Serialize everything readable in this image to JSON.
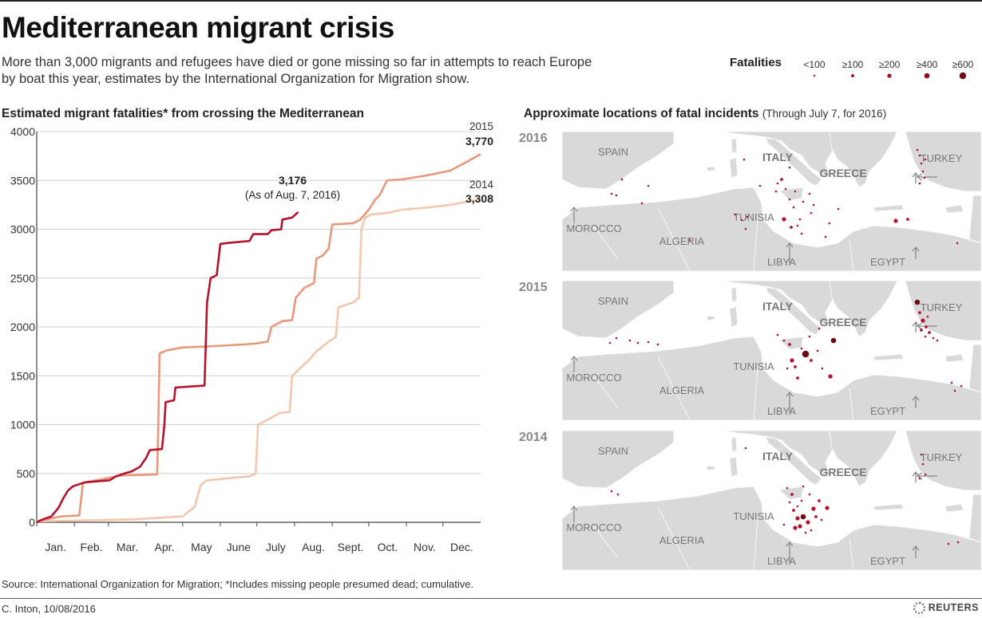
{
  "title": "Mediterranean migrant crisis",
  "subtitle": "More than 3,000 migrants and refugees have died or gone missing so far in attempts to reach Europe by boat this year, estimates by the International Organization for Migration show.",
  "legend": {
    "title": "Fatalities",
    "items": [
      {
        "label": "<100"
      },
      {
        "label": "≥100"
      },
      {
        "label": "≥200"
      },
      {
        "label": "≥400"
      },
      {
        "label": "≥600"
      }
    ]
  },
  "chart_heading": "Estimated migrant fatalities* from crossing the Mediterranean",
  "map_heading": {
    "main": "Approximate locations of fatal incidents",
    "sub": "(Through July 7, for 2016)"
  },
  "chart_data": {
    "type": "line",
    "title": "Estimated migrant fatalities* from crossing the Mediterranean",
    "xlabel": "",
    "ylabel": "",
    "x_ticks": [
      "Jan.",
      "Feb.",
      "Mar.",
      "Apr.",
      "May",
      "June",
      "July",
      "Aug.",
      "Sept.",
      "Oct.",
      "Nov.",
      "Dec."
    ],
    "y_ticks": [
      0,
      500,
      1000,
      1500,
      2000,
      2500,
      3000,
      3500,
      4000
    ],
    "ylim": [
      0,
      4000
    ],
    "xlim_days": [
      0,
      365
    ],
    "grid": true,
    "series": [
      {
        "name": "2016",
        "color": "#b5122b",
        "points": [
          [
            0,
            0
          ],
          [
            5,
            30
          ],
          [
            12,
            60
          ],
          [
            18,
            150
          ],
          [
            22,
            250
          ],
          [
            26,
            330
          ],
          [
            30,
            370
          ],
          [
            35,
            390
          ],
          [
            40,
            410
          ],
          [
            50,
            420
          ],
          [
            60,
            430
          ],
          [
            65,
            470
          ],
          [
            72,
            500
          ],
          [
            78,
            520
          ],
          [
            85,
            570
          ],
          [
            90,
            660
          ],
          [
            93,
            740
          ],
          [
            103,
            750
          ],
          [
            105,
            1000
          ],
          [
            106,
            1230
          ],
          [
            113,
            1250
          ],
          [
            114,
            1380
          ],
          [
            138,
            1400
          ],
          [
            140,
            2250
          ],
          [
            143,
            2500
          ],
          [
            148,
            2530
          ],
          [
            151,
            2850
          ],
          [
            157,
            2860
          ],
          [
            175,
            2880
          ],
          [
            178,
            2950
          ],
          [
            190,
            2950
          ],
          [
            193,
            2990
          ],
          [
            201,
            3000
          ],
          [
            202,
            3100
          ],
          [
            210,
            3120
          ],
          [
            215,
            3176
          ]
        ]
      },
      {
        "name": "2015",
        "color": "#e8987a",
        "points": [
          [
            0,
            10
          ],
          [
            20,
            60
          ],
          [
            35,
            70
          ],
          [
            38,
            400
          ],
          [
            40,
            410
          ],
          [
            70,
            480
          ],
          [
            99,
            490
          ],
          [
            100,
            1000
          ],
          [
            101,
            1730
          ],
          [
            107,
            1760
          ],
          [
            120,
            1790
          ],
          [
            140,
            1800
          ],
          [
            170,
            1820
          ],
          [
            180,
            1830
          ],
          [
            190,
            1850
          ],
          [
            193,
            2000
          ],
          [
            202,
            2060
          ],
          [
            210,
            2070
          ],
          [
            213,
            2300
          ],
          [
            220,
            2400
          ],
          [
            228,
            2450
          ],
          [
            230,
            2700
          ],
          [
            235,
            2730
          ],
          [
            240,
            2800
          ],
          [
            243,
            3050
          ],
          [
            260,
            3060
          ],
          [
            266,
            3100
          ],
          [
            273,
            3200
          ],
          [
            278,
            3300
          ],
          [
            282,
            3350
          ],
          [
            288,
            3500
          ],
          [
            300,
            3510
          ],
          [
            310,
            3530
          ],
          [
            320,
            3550
          ],
          [
            340,
            3600
          ],
          [
            355,
            3700
          ],
          [
            365,
            3770
          ]
        ]
      },
      {
        "name": "2014",
        "color": "#f4c6ad",
        "points": [
          [
            0,
            10
          ],
          [
            80,
            30
          ],
          [
            120,
            60
          ],
          [
            130,
            160
          ],
          [
            133,
            300
          ],
          [
            135,
            380
          ],
          [
            140,
            430
          ],
          [
            150,
            440
          ],
          [
            165,
            460
          ],
          [
            175,
            470
          ],
          [
            180,
            500
          ],
          [
            182,
            1000
          ],
          [
            190,
            1050
          ],
          [
            200,
            1120
          ],
          [
            208,
            1130
          ],
          [
            210,
            1500
          ],
          [
            216,
            1570
          ],
          [
            223,
            1650
          ],
          [
            230,
            1750
          ],
          [
            235,
            1800
          ],
          [
            240,
            1850
          ],
          [
            246,
            1900
          ],
          [
            248,
            2200
          ],
          [
            260,
            2250
          ],
          [
            265,
            2300
          ],
          [
            267,
            3000
          ],
          [
            270,
            3120
          ],
          [
            275,
            3150
          ],
          [
            290,
            3170
          ],
          [
            300,
            3200
          ],
          [
            320,
            3220
          ],
          [
            340,
            3250
          ],
          [
            365,
            3308
          ]
        ]
      }
    ],
    "annotations": [
      {
        "series": "2016",
        "value": "3,176",
        "note": "(As of Aug. 7, 2016)"
      },
      {
        "series": "2015",
        "year": "2015",
        "value": "3,770"
      },
      {
        "series": "2014",
        "year": "2014",
        "value": "3,308"
      }
    ]
  },
  "maps": [
    {
      "year": "2016",
      "labels": {
        "spain": "SPAIN",
        "italy": "ITALY",
        "greece": "GREECE",
        "turkey": "TURKEY",
        "tunisia": "TUNISIA",
        "morocco": "MOROCCO",
        "algeria": "ALGERIA",
        "libya": "LIBYA",
        "egypt": "EGYPT"
      },
      "dots": [
        {
          "lon": 160,
          "lat": 136,
          "size": 1
        },
        {
          "lon": 225,
          "lat": 111,
          "size": 1
        },
        {
          "lon": 232,
          "lat": 107,
          "size": 1
        },
        {
          "lon": 217,
          "lat": 104,
          "size": 1
        },
        {
          "lon": 230,
          "lat": 122,
          "size": 1
        },
        {
          "lon": 248,
          "lat": 68,
          "size": 1
        },
        {
          "lon": 268,
          "lat": 75,
          "size": 1
        },
        {
          "lon": 270,
          "lat": 65,
          "size": 1
        },
        {
          "lon": 275,
          "lat": 60,
          "size": 2
        },
        {
          "lon": 280,
          "lat": 72,
          "size": 1
        },
        {
          "lon": 285,
          "lat": 85,
          "size": 1
        },
        {
          "lon": 290,
          "lat": 95,
          "size": 1
        },
        {
          "lon": 295,
          "lat": 118,
          "size": 1
        },
        {
          "lon": 300,
          "lat": 128,
          "size": 1
        },
        {
          "lon": 292,
          "lat": 75,
          "size": 1
        },
        {
          "lon": 302,
          "lat": 88,
          "size": 1
        },
        {
          "lon": 310,
          "lat": 78,
          "size": 1
        },
        {
          "lon": 315,
          "lat": 92,
          "size": 1
        },
        {
          "lon": 278,
          "lat": 110,
          "size": 3
        },
        {
          "lon": 287,
          "lat": 120,
          "size": 2
        },
        {
          "lon": 298,
          "lat": 110,
          "size": 1
        },
        {
          "lon": 312,
          "lat": 102,
          "size": 1
        },
        {
          "lon": 335,
          "lat": 115,
          "size": 1
        },
        {
          "lon": 346,
          "lat": 97,
          "size": 1
        },
        {
          "lon": 285,
          "lat": 45,
          "size": 1
        },
        {
          "lon": 330,
          "lat": 132,
          "size": 1
        },
        {
          "lon": 228,
          "lat": 35,
          "size": 1
        },
        {
          "lon": 418,
          "lat": 112,
          "size": 3
        },
        {
          "lon": 433,
          "lat": 110,
          "size": 2
        },
        {
          "lon": 445,
          "lat": 23,
          "size": 1
        },
        {
          "lon": 448,
          "lat": 30,
          "size": 1
        },
        {
          "lon": 450,
          "lat": 40,
          "size": 1
        },
        {
          "lon": 452,
          "lat": 50,
          "size": 1
        },
        {
          "lon": 454,
          "lat": 58,
          "size": 1
        },
        {
          "lon": 448,
          "lat": 65,
          "size": 1
        },
        {
          "lon": 455,
          "lat": 35,
          "size": 1
        },
        {
          "lon": 75,
          "lat": 60,
          "size": 1
        },
        {
          "lon": 68,
          "lat": 80,
          "size": 1
        },
        {
          "lon": 100,
          "lat": 90,
          "size": 1
        },
        {
          "lon": 108,
          "lat": 68,
          "size": 1
        },
        {
          "lon": 62,
          "lat": 78,
          "size": 1
        },
        {
          "lon": 495,
          "lat": 140,
          "size": 1
        }
      ]
    },
    {
      "year": "2015",
      "labels": {
        "spain": "SPAIN",
        "italy": "ITALY",
        "greece": "GREECE",
        "turkey": "TURKEY",
        "tunisia": "TUNISIA",
        "morocco": "MOROCCO",
        "algeria": "ALGERIA",
        "libya": "LIBYA",
        "egypt": "EGYPT"
      },
      "dots": [
        {
          "lon": 60,
          "lat": 78,
          "size": 1
        },
        {
          "lon": 68,
          "lat": 72,
          "size": 1
        },
        {
          "lon": 85,
          "lat": 75,
          "size": 1
        },
        {
          "lon": 95,
          "lat": 78,
          "size": 1
        },
        {
          "lon": 108,
          "lat": 77,
          "size": 1
        },
        {
          "lon": 120,
          "lat": 80,
          "size": 1
        },
        {
          "lon": 270,
          "lat": 68,
          "size": 1
        },
        {
          "lon": 278,
          "lat": 75,
          "size": 1
        },
        {
          "lon": 285,
          "lat": 80,
          "size": 2
        },
        {
          "lon": 288,
          "lat": 100,
          "size": 3
        },
        {
          "lon": 292,
          "lat": 108,
          "size": 2
        },
        {
          "lon": 300,
          "lat": 85,
          "size": 1
        },
        {
          "lon": 305,
          "lat": 92,
          "size": 5
        },
        {
          "lon": 312,
          "lat": 100,
          "size": 2
        },
        {
          "lon": 320,
          "lat": 88,
          "size": 1
        },
        {
          "lon": 340,
          "lat": 75,
          "size": 4
        },
        {
          "lon": 336,
          "lat": 120,
          "size": 3
        },
        {
          "lon": 326,
          "lat": 110,
          "size": 1
        },
        {
          "lon": 295,
          "lat": 122,
          "size": 2
        },
        {
          "lon": 282,
          "lat": 110,
          "size": 1
        },
        {
          "lon": 310,
          "lat": 70,
          "size": 1
        },
        {
          "lon": 322,
          "lat": 60,
          "size": 1
        },
        {
          "lon": 445,
          "lat": 27,
          "size": 4
        },
        {
          "lon": 448,
          "lat": 40,
          "size": 2
        },
        {
          "lon": 452,
          "lat": 50,
          "size": 3
        },
        {
          "lon": 456,
          "lat": 58,
          "size": 2
        },
        {
          "lon": 460,
          "lat": 65,
          "size": 2
        },
        {
          "lon": 465,
          "lat": 72,
          "size": 1
        },
        {
          "lon": 455,
          "lat": 70,
          "size": 1
        },
        {
          "lon": 470,
          "lat": 75,
          "size": 1
        },
        {
          "lon": 450,
          "lat": 62,
          "size": 2
        },
        {
          "lon": 458,
          "lat": 45,
          "size": 1
        },
        {
          "lon": 492,
          "lat": 138,
          "size": 1
        },
        {
          "lon": 488,
          "lat": 128,
          "size": 1
        },
        {
          "lon": 500,
          "lat": 132,
          "size": 1
        }
      ]
    },
    {
      "year": "2014",
      "labels": {
        "spain": "SPAIN",
        "italy": "ITALY",
        "greece": "GREECE",
        "turkey": "TURKEY",
        "tunisia": "TUNISIA",
        "morocco": "MOROCCO",
        "algeria": "ALGERIA",
        "libya": "LIBYA",
        "egypt": "EGYPT"
      },
      "dots": [
        {
          "lon": 62,
          "lat": 76,
          "size": 1
        },
        {
          "lon": 70,
          "lat": 80,
          "size": 1
        },
        {
          "lon": 230,
          "lat": 22,
          "size": 1
        },
        {
          "lon": 282,
          "lat": 72,
          "size": 1
        },
        {
          "lon": 288,
          "lat": 80,
          "size": 2
        },
        {
          "lon": 285,
          "lat": 90,
          "size": 1
        },
        {
          "lon": 290,
          "lat": 100,
          "size": 2
        },
        {
          "lon": 295,
          "lat": 110,
          "size": 3
        },
        {
          "lon": 302,
          "lat": 108,
          "size": 4
        },
        {
          "lon": 308,
          "lat": 115,
          "size": 3
        },
        {
          "lon": 298,
          "lat": 120,
          "size": 3
        },
        {
          "lon": 292,
          "lat": 122,
          "size": 3
        },
        {
          "lon": 315,
          "lat": 98,
          "size": 3
        },
        {
          "lon": 318,
          "lat": 108,
          "size": 2
        },
        {
          "lon": 325,
          "lat": 112,
          "size": 1
        },
        {
          "lon": 332,
          "lat": 97,
          "size": 3
        },
        {
          "lon": 322,
          "lat": 88,
          "size": 2
        },
        {
          "lon": 310,
          "lat": 80,
          "size": 1
        },
        {
          "lon": 300,
          "lat": 88,
          "size": 1
        },
        {
          "lon": 302,
          "lat": 70,
          "size": 1
        },
        {
          "lon": 295,
          "lat": 95,
          "size": 1
        },
        {
          "lon": 312,
          "lat": 125,
          "size": 1
        },
        {
          "lon": 305,
          "lat": 128,
          "size": 1
        },
        {
          "lon": 278,
          "lat": 118,
          "size": 1
        },
        {
          "lon": 450,
          "lat": 30,
          "size": 1
        },
        {
          "lon": 452,
          "lat": 42,
          "size": 1
        },
        {
          "lon": 455,
          "lat": 55,
          "size": 1
        },
        {
          "lon": 448,
          "lat": 60,
          "size": 1
        },
        {
          "lon": 496,
          "lat": 140,
          "size": 1
        },
        {
          "lon": 484,
          "lat": 142,
          "size": 1
        }
      ]
    }
  ],
  "source": "Source: International Organization for Migration; *Includes missing people presumed dead; cumulative.",
  "credit": "C. Inton, 10/08/2016",
  "brand": "REUTERS",
  "colors": {
    "dot": "#b5122b",
    "dot_dark": "#6e0a12",
    "land": "#d9d9d9",
    "sea": "#ffffff",
    "map_label": "#777777"
  }
}
